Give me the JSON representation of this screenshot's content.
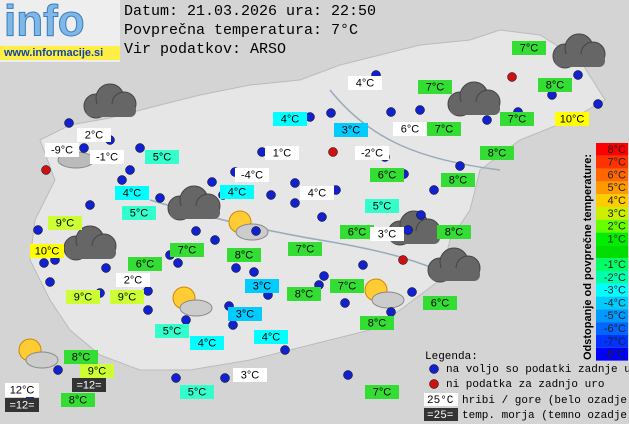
{
  "header": {
    "logo": "info",
    "url": "www.informacije.si",
    "lines": [
      "Datum: 21.03.2026 ura: 22:50",
      "Povprečna temperatura: 7°C",
      "Vir podatkov: ARSO"
    ]
  },
  "stations": [
    {
      "label": "7°C",
      "color": "#33dd33"
    },
    {
      "label": "4°C",
      "color": "#ffffff"
    },
    {
      "label": "7°C",
      "color": "#33dd33"
    },
    {
      "label": "8°C",
      "color": "#33dd33"
    },
    {
      "label": "4°C",
      "color": "#00ffff"
    },
    {
      "label": "3°C",
      "color": "#00ccff"
    },
    {
      "label": "6°C",
      "color": "#ffffff"
    },
    {
      "label": "7°C",
      "color": "#33dd33"
    },
    {
      "label": "7°C",
      "color": "#33dd33"
    },
    {
      "label": "10°C",
      "color": "#ffff00"
    },
    {
      "label": "2°C",
      "color": "#ffffff"
    },
    {
      "label": "-9°C",
      "color": "#ffffff"
    },
    {
      "label": "-1°C",
      "color": "#ffffff"
    },
    {
      "label": "5°C",
      "color": "#33ffcc"
    },
    {
      "label": "1°C",
      "color": "#ffffff"
    },
    {
      "label": "-2°C",
      "color": "#ffffff"
    },
    {
      "label": "8°C",
      "color": "#33dd33"
    },
    {
      "label": "6°C",
      "color": "#33dd33"
    },
    {
      "label": "-4°C",
      "color": "#ffffff"
    },
    {
      "label": "8°C",
      "color": "#33dd33"
    },
    {
      "label": "4°C",
      "color": "#00ffff"
    },
    {
      "label": "4°C",
      "color": "#00ffff"
    },
    {
      "label": "4°C",
      "color": "#ffffff"
    },
    {
      "label": "5°C",
      "color": "#33ffcc"
    },
    {
      "label": "5°C",
      "color": "#33ffcc"
    },
    {
      "label": "9°C",
      "color": "#ccff33"
    },
    {
      "label": "6°C",
      "color": "#33dd33"
    },
    {
      "label": "3°C",
      "color": "#ffffff"
    },
    {
      "label": "8°C",
      "color": "#33dd33"
    },
    {
      "label": "10°C",
      "color": "#ffff00"
    },
    {
      "label": "7°C",
      "color": "#33dd33"
    },
    {
      "label": "7°C",
      "color": "#33dd33"
    },
    {
      "label": "8°C",
      "color": "#33dd33"
    },
    {
      "label": "6°C",
      "color": "#33dd33"
    },
    {
      "label": "2°C",
      "color": "#ffffff"
    },
    {
      "label": "3°C",
      "color": "#00ccff"
    },
    {
      "label": "8°C",
      "color": "#33dd33"
    },
    {
      "label": "7°C",
      "color": "#33dd33"
    },
    {
      "label": "9°C",
      "color": "#ccff33"
    },
    {
      "label": "9°C",
      "color": "#ccff33"
    },
    {
      "label": "6°C",
      "color": "#33dd33"
    },
    {
      "label": "3°C",
      "color": "#00ccff"
    },
    {
      "label": "8°C",
      "color": "#33dd33"
    },
    {
      "label": "5°C",
      "color": "#33ffcc"
    },
    {
      "label": "4°C",
      "color": "#00ffff"
    },
    {
      "label": "4°C",
      "color": "#00ffff"
    },
    {
      "label": "8°C",
      "color": "#33dd33"
    },
    {
      "label": "9°C",
      "color": "#ccff33"
    },
    {
      "label": "3°C",
      "color": "#ffffff"
    },
    {
      "label": "=12=",
      "color": "#333333"
    },
    {
      "label": "12°C",
      "color": "#ffffff"
    },
    {
      "label": "7°C",
      "color": "#33dd33"
    },
    {
      "label": "5°C",
      "color": "#33ffcc"
    },
    {
      "label": "8°C",
      "color": "#33dd33"
    },
    {
      "label": "=12=",
      "color": "#333333"
    }
  ],
  "scale": {
    "title": "Odstopanje od povprečne temperature:",
    "items": [
      {
        "label": "8°C",
        "color": "#ff0000"
      },
      {
        "label": "7°C",
        "color": "#ff3300"
      },
      {
        "label": "6°C",
        "color": "#ff6600"
      },
      {
        "label": "5°C",
        "color": "#ff9900"
      },
      {
        "label": "4°C",
        "color": "#ffcc00"
      },
      {
        "label": "3°C",
        "color": "#ccee00"
      },
      {
        "label": "2°C",
        "color": "#66ff00"
      },
      {
        "label": "1°C",
        "color": "#00ee00"
      },
      {
        "label": null,
        "color": "#00dd00"
      },
      {
        "label": "-1°C",
        "color": "#00ff66"
      },
      {
        "label": "-2°C",
        "color": "#00ffaa"
      },
      {
        "label": "-3°C",
        "color": "#00ffff"
      },
      {
        "label": "-4°C",
        "color": "#00ccff"
      },
      {
        "label": "-5°C",
        "color": "#0099ff"
      },
      {
        "label": "-6°C",
        "color": "#0066ff"
      },
      {
        "label": "-7°C",
        "color": "#0033ff"
      },
      {
        "label": "-8°C",
        "color": "#0000ff"
      }
    ]
  },
  "legend": {
    "title": "Legenda:",
    "available": "na voljo so podatki zadnje ure",
    "missing": "ni podatka za zadnjo uro",
    "hill_sample": "25°C",
    "hill": "hribi / gore (belo ozadje)",
    "sea_sample": "=25=",
    "sea": "temp. morja (temno ozadje)"
  }
}
